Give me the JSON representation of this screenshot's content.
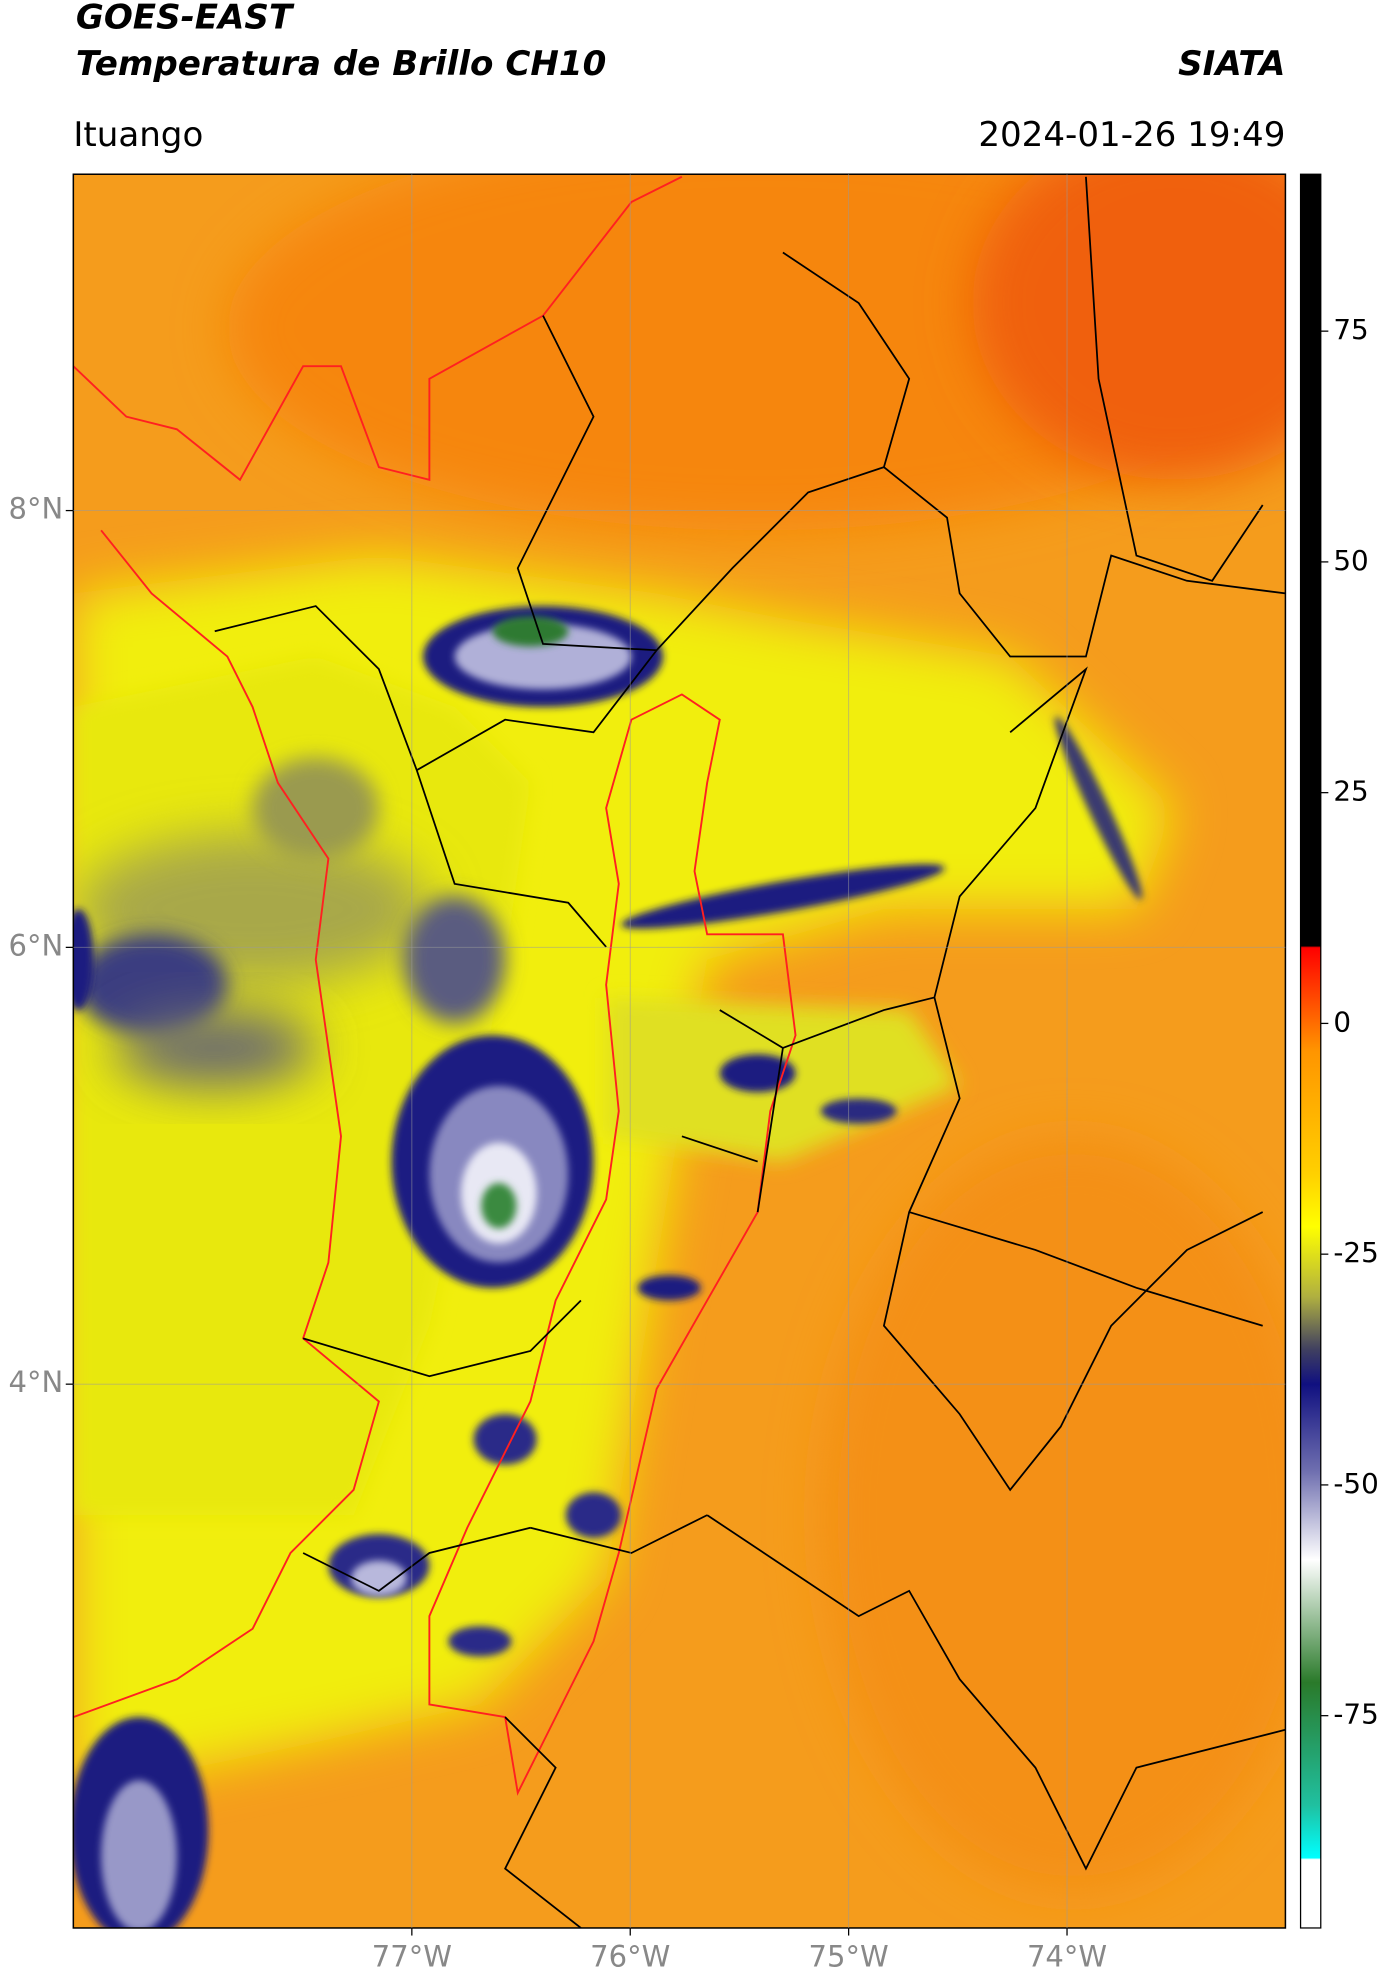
{
  "title": "GOES-EAST",
  "subtitle": "Temperatura de Brillo CH10",
  "source": "SIATA",
  "location": "Ituango",
  "datetime": "2024-01-26 19:49",
  "map": {
    "xlim": [
      -78.55,
      -73.0
    ],
    "ylim": [
      1.51,
      9.54
    ],
    "xticks": [
      {
        "value": -77,
        "label": "77°W"
      },
      {
        "value": -76,
        "label": "76°W"
      },
      {
        "value": -75,
        "label": "75°W"
      },
      {
        "value": -74,
        "label": "74°W"
      }
    ],
    "yticks": [
      {
        "value": 8,
        "label": "8°N"
      },
      {
        "value": 6,
        "label": "6°N"
      },
      {
        "value": 4,
        "label": "4°N"
      }
    ],
    "grid": true
  },
  "colorbar": {
    "clim": [
      -98,
      92
    ],
    "ticks": [
      75,
      50,
      25,
      0,
      -25,
      -50,
      -75
    ]
  }
}
